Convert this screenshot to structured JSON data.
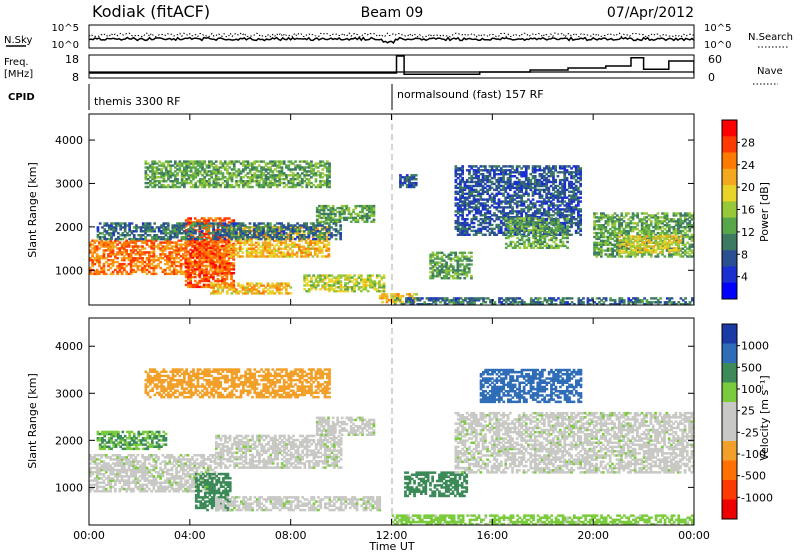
{
  "header": {
    "station": "Kodiak (fitACF)",
    "beam": "Beam 09",
    "date": "07/Apr/2012"
  },
  "left_labels": {
    "nsky": "N.Sky",
    "freq_line1": "Freq.",
    "freq_line2": "[MHz]",
    "cpid": "CPID"
  },
  "right_labels": {
    "nsearch": "N.Search",
    "nave": "Nave"
  },
  "noise_axis": {
    "left_top": "10^5",
    "left_bottom": "10^0",
    "right_top": "10^5",
    "right_bottom": "10^0"
  },
  "freq_axis": {
    "left_top": "18",
    "left_bottom": "8",
    "right_top": "60",
    "right_bottom": "0"
  },
  "cpid_labels": [
    {
      "text": "themis 3300 RF",
      "hour": 0
    },
    {
      "text": "normalsound (fast) 157 RF",
      "hour": 12
    }
  ],
  "x_axis": {
    "label": "Time UT",
    "ticks": [
      "00:00",
      "04:00",
      "08:00",
      "12:00",
      "16:00",
      "20:00",
      "00:00"
    ],
    "hours": [
      0,
      4,
      8,
      12,
      16,
      20,
      24
    ]
  },
  "chart_data": [
    {
      "type": "heatmap",
      "quantity": "power",
      "ylabel": "Slant Range [km]",
      "xlabel": "Time UT",
      "xlim": [
        0,
        24
      ],
      "ylim": [
        200,
        4600
      ],
      "yticks": [
        "1000",
        "2000",
        "3000",
        "4000"
      ],
      "ytick_values": [
        1000,
        2000,
        3000,
        4000
      ],
      "colorbar": {
        "label": "Power [dB]",
        "ticks": [
          "28",
          "24",
          "20",
          "16",
          "12",
          "8",
          "4"
        ],
        "tick_values": [
          28,
          24,
          20,
          16,
          12,
          8,
          4
        ],
        "colors": [
          "#ff0000",
          "#ff3a00",
          "#ff7a00",
          "#f4a81e",
          "#e9d52a",
          "#96c83a",
          "#58a64a",
          "#3d7a62",
          "#2a4f93",
          "#1a2fd0",
          "#0000ff"
        ]
      },
      "regions": [
        {
          "t0": 0.0,
          "t1": 5.5,
          "r0": 900,
          "r1": 1700,
          "level": 24
        },
        {
          "t0": 3.8,
          "t1": 5.7,
          "r0": 600,
          "r1": 2200,
          "level": 26
        },
        {
          "t0": 5.5,
          "t1": 9.5,
          "r0": 1300,
          "r1": 2000,
          "level": 20
        },
        {
          "t0": 9.0,
          "t1": 11.3,
          "r0": 2100,
          "r1": 2500,
          "level": 12
        },
        {
          "t0": 0.3,
          "t1": 10.0,
          "r0": 1700,
          "r1": 2100,
          "level": 8
        },
        {
          "t0": 2.2,
          "t1": 9.5,
          "r0": 2900,
          "r1": 3500,
          "level": 12
        },
        {
          "t0": 4.8,
          "t1": 8.0,
          "r0": 450,
          "r1": 700,
          "level": 20
        },
        {
          "t0": 8.5,
          "t1": 11.7,
          "r0": 500,
          "r1": 900,
          "level": 16
        },
        {
          "t0": 11.5,
          "t1": 13.0,
          "r0": 250,
          "r1": 450,
          "level": 20
        },
        {
          "t0": 13.5,
          "t1": 15.2,
          "r0": 800,
          "r1": 1400,
          "level": 12
        },
        {
          "t0": 12.3,
          "t1": 13.0,
          "r0": 2900,
          "r1": 3200,
          "level": 6
        },
        {
          "t0": 14.5,
          "t1": 19.5,
          "r0": 1800,
          "r1": 3400,
          "level": 6
        },
        {
          "t0": 16.5,
          "t1": 19.0,
          "r0": 1500,
          "r1": 2200,
          "level": 12
        },
        {
          "t0": 20.0,
          "t1": 24.0,
          "r0": 1300,
          "r1": 2300,
          "level": 12
        },
        {
          "t0": 21.0,
          "t1": 23.5,
          "r0": 1400,
          "r1": 1800,
          "level": 18
        },
        {
          "t0": 12.0,
          "t1": 24.0,
          "r0": 200,
          "r1": 350,
          "level": 8
        }
      ]
    },
    {
      "type": "heatmap",
      "quantity": "velocity",
      "ylabel": "Slant Range [km]",
      "xlabel": "Time UT",
      "xlim": [
        0,
        24
      ],
      "ylim": [
        200,
        4600
      ],
      "yticks": [
        "1000",
        "2000",
        "3000",
        "4000"
      ],
      "ytick_values": [
        1000,
        2000,
        3000,
        4000
      ],
      "colorbar": {
        "label": "Velocity [m s⁻¹]",
        "ticks": [
          "1000",
          "500",
          "100",
          "25",
          "-25",
          "-100",
          "-500",
          "-1000"
        ],
        "tick_values": [
          1000,
          500,
          100,
          25,
          -25,
          -100,
          -500,
          -1000
        ],
        "colors": [
          "#1a3aa6",
          "#2f6db8",
          "#3b8a58",
          "#7acc3c",
          "#c8c8c4",
          "#c8c8c4",
          "#f2a02a",
          "#ff7000",
          "#ff3a00",
          "#ee0000"
        ]
      },
      "regions": [
        {
          "t0": 0.0,
          "t1": 5.0,
          "r0": 900,
          "r1": 1700,
          "level": 0
        },
        {
          "t0": 4.2,
          "t1": 5.6,
          "r0": 500,
          "r1": 1300,
          "level": 200
        },
        {
          "t0": 5.0,
          "t1": 10.0,
          "r0": 1400,
          "r1": 2100,
          "level": 0
        },
        {
          "t0": 9.0,
          "t1": 11.3,
          "r0": 2100,
          "r1": 2500,
          "level": 0
        },
        {
          "t0": 0.3,
          "t1": 3.0,
          "r0": 1800,
          "r1": 2200,
          "level": 100
        },
        {
          "t0": 2.2,
          "t1": 9.5,
          "r0": 2900,
          "r1": 3500,
          "level": -300
        },
        {
          "t0": 5.0,
          "t1": 11.5,
          "r0": 500,
          "r1": 800,
          "level": 0
        },
        {
          "t0": 12.5,
          "t1": 15.0,
          "r0": 800,
          "r1": 1300,
          "level": 150
        },
        {
          "t0": 15.5,
          "t1": 19.5,
          "r0": 2800,
          "r1": 3500,
          "level": 800
        },
        {
          "t0": 14.5,
          "t1": 24.0,
          "r0": 1300,
          "r1": 2600,
          "level": 0
        },
        {
          "t0": 12.0,
          "t1": 24.0,
          "r0": 200,
          "r1": 400,
          "level": 50
        }
      ]
    }
  ]
}
